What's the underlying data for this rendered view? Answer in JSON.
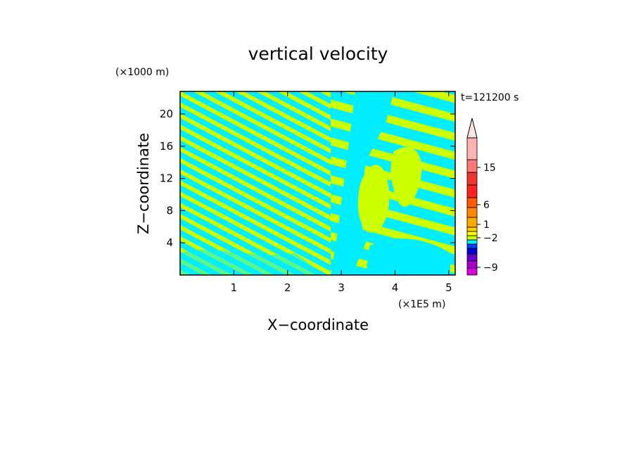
{
  "chart_data": {
    "type": "heatmap",
    "title": "vertical velocity",
    "xlabel": "X−coordinate",
    "ylabel": "Z−coordinate",
    "x_unit": "(×1E5 m)",
    "y_unit": "(×1000 m)",
    "time_label": "t=121200 s",
    "xlim": [
      0,
      5.12
    ],
    "ylim": [
      0,
      22.8
    ],
    "x_ticks": [
      1,
      2,
      3,
      4,
      5
    ],
    "y_ticks": [
      4,
      8,
      12,
      16,
      20
    ],
    "field_colors": {
      "positive": "#ccff00",
      "negative": "#00eeff"
    },
    "colorbar": {
      "extend": "max",
      "extend_color": "#ffe4e1",
      "levels": [
        {
          "color": "#dd00dd"
        },
        {
          "color": "#aa00cc"
        },
        {
          "color": "#6600cc"
        },
        {
          "color": "#0000dd"
        },
        {
          "color": "#0044ff"
        },
        {
          "color": "#00eeff"
        },
        {
          "color": "#ccff00"
        },
        {
          "color": "#ffff00"
        },
        {
          "color": "#ffd000"
        },
        {
          "color": "#ffaa00"
        },
        {
          "color": "#ff8800"
        },
        {
          "color": "#ff5a00"
        },
        {
          "color": "#ff2222"
        },
        {
          "color": "#ee3333"
        },
        {
          "color": "#ff7777"
        },
        {
          "color": "#ffb3b3"
        }
      ],
      "tick_labels": [
        {
          "label": "15",
          "value": 15
        },
        {
          "label": "6",
          "value": 6
        },
        {
          "label": "1",
          "value": 1
        },
        {
          "label": "−2",
          "value": -2
        },
        {
          "label": "−9",
          "value": -9
        }
      ]
    }
  }
}
